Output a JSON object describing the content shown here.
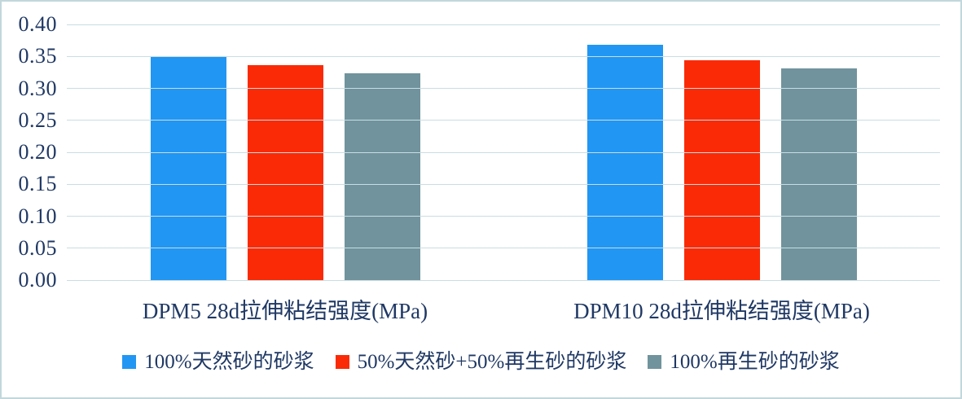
{
  "chart_data": {
    "type": "bar",
    "title": "",
    "categories": [
      "DPM5 28d拉伸粘结强度(MPa)",
      "DPM10 28d拉伸粘结强度(MPa)"
    ],
    "series": [
      {
        "name": "100%天然砂的砂浆",
        "color": "#2196F3",
        "values": [
          0.35,
          0.368
        ]
      },
      {
        "name": "50%天然砂+50%再生砂的砂浆",
        "color": "#FB2A06",
        "values": [
          0.336,
          0.344
        ]
      },
      {
        "name": "100%再生砂的砂浆",
        "color": "#70939D",
        "values": [
          0.323,
          0.331
        ]
      }
    ],
    "ylim": [
      0.0,
      0.4
    ],
    "ytick_step": 0.05,
    "yticks": [
      "0.00",
      "0.05",
      "0.10",
      "0.15",
      "0.20",
      "0.25",
      "0.30",
      "0.35",
      "0.40"
    ],
    "grid": true,
    "legend_position": "bottom",
    "colors": {
      "grid_line": "#c9dde2",
      "axis_text": "#1f3864",
      "frame_border": "#c3d7dc",
      "background": "#ffffff"
    }
  }
}
